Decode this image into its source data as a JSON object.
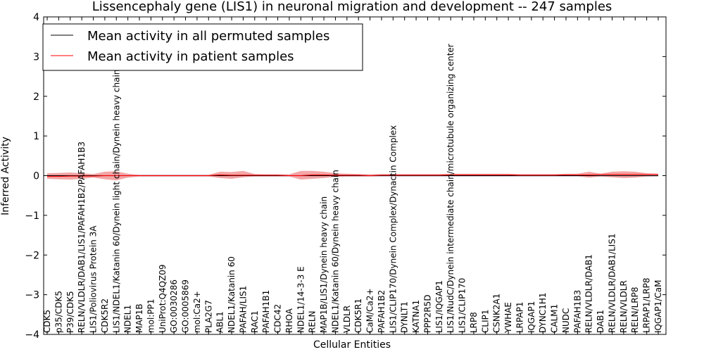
{
  "chart_data": {
    "type": "line",
    "title": "Lissencephaly gene (LIS1) in neuronal migration and development -- 247 samples",
    "xlabel": "Cellular Entities",
    "ylabel": "Inferred Activity",
    "ylim": [
      -4,
      4
    ],
    "yticks": [
      -4,
      -3,
      -2,
      -1,
      0,
      1,
      2,
      3,
      4
    ],
    "ytick_labels": [
      "−4",
      "−3",
      "−2",
      "−1",
      "0",
      "1",
      "2",
      "3",
      "4"
    ],
    "legend_position": "top-left",
    "categories": [
      "CDK5",
      "p35/CDK5",
      "P39/CDK5",
      "RELN/VLDLR/DAB1/LIS1/PAFAH1B2/PAFAH1B3",
      "LIS1/Poliovirus Protein 3A",
      "CDK5R2",
      "LIS1/NDEL1/Katanin 60/Dynein light chain/Dynein heavy chain",
      "NDEL1",
      "MAP1B",
      "mol:PP1",
      "UniProt:Q4QZ09",
      "GO:0030286",
      "GO:0005869",
      "mol:Ca2+",
      "PLA2G7",
      "ABL1",
      "NDEL1/Katanin 60",
      "PAFAH/LIS1",
      "RAC1",
      "PAFAH1B1",
      "CDC42",
      "RHOA",
      "NDEL1/14-3-3 E",
      "RELN",
      "MAP1B/LIS1/Dynein heavy chain",
      "NDEL1/Katanin 60/Dynein heavy chain",
      "VLDLR",
      "CDK5R1",
      "CaM/Ca2+",
      "PAFAH1B2",
      "LIS1/CLIP170/Dynein Complex/Dynactin Complex",
      "DYNLT1",
      "KATNA1",
      "PPP2R5D",
      "LIS1/IQGAP1",
      "LIS1/NudC/Dynein intermediate chain/microtubule organizing center",
      "LIS1/CLIP170",
      "LRP8",
      "CLIP1",
      "CSNK2A1",
      "YWHAE",
      "LRPAP1",
      "IQGAP1",
      "DYNC1H1",
      "CALM1",
      "NUDC",
      "PAFAH1B3",
      "RELN/VLDLR/DAB1",
      "DAB1",
      "RELN/VLDLR/DAB1/LIS1",
      "RELN/VLDLR",
      "RELN/LRP8",
      "LRPAP1/LRP8",
      "IQGAP1/CaM"
    ],
    "series": [
      {
        "name": "Mean activity in all permuted samples",
        "color": "#000000",
        "values": [
          0,
          0,
          0,
          0,
          0,
          0,
          0,
          0,
          0,
          0,
          0,
          0,
          0,
          0,
          0,
          0,
          0,
          0,
          0,
          0,
          0,
          0,
          0,
          0,
          0,
          0,
          0,
          0,
          0,
          0,
          0,
          0,
          0,
          0,
          0,
          0,
          0,
          0,
          0,
          0,
          0,
          0,
          0,
          0,
          0,
          0,
          0,
          0,
          0,
          0,
          0,
          0,
          0,
          0
        ],
        "band_lower": [
          -0.03,
          -0.03,
          -0.03,
          -0.03,
          -0.03,
          -0.03,
          -0.03,
          -0.03,
          -0.03,
          -0.03,
          -0.03,
          -0.03,
          -0.03,
          -0.03,
          -0.03,
          -0.03,
          -0.03,
          -0.03,
          -0.03,
          -0.03,
          -0.03,
          -0.03,
          -0.03,
          -0.03,
          -0.03,
          -0.03,
          -0.03,
          -0.03,
          -0.03,
          -0.03,
          -0.03,
          -0.03,
          -0.03,
          -0.03,
          -0.03,
          -0.03,
          -0.03,
          -0.03,
          -0.03,
          -0.03,
          -0.03,
          -0.03,
          -0.03,
          -0.03,
          -0.03,
          -0.03,
          -0.03,
          -0.03,
          -0.03,
          -0.03,
          -0.03,
          -0.03,
          -0.03,
          -0.03
        ],
        "band_upper": [
          0.03,
          0.03,
          0.03,
          0.03,
          0.03,
          0.03,
          0.03,
          0.03,
          0.03,
          0.03,
          0.03,
          0.03,
          0.03,
          0.03,
          0.03,
          0.03,
          0.03,
          0.03,
          0.03,
          0.03,
          0.03,
          0.03,
          0.03,
          0.03,
          0.03,
          0.03,
          0.03,
          0.03,
          0.03,
          0.03,
          0.03,
          0.03,
          0.03,
          0.03,
          0.03,
          0.03,
          0.03,
          0.03,
          0.03,
          0.03,
          0.03,
          0.03,
          0.03,
          0.03,
          0.03,
          0.03,
          0.03,
          0.03,
          0.03,
          0.03,
          0.03,
          0.03,
          0.03,
          0.03
        ],
        "band_color": "#b0b0c8"
      },
      {
        "name": "Mean activity in patient samples",
        "color": "#ff0000",
        "values": [
          -0.02,
          -0.02,
          -0.01,
          -0.01,
          -0.01,
          0,
          0,
          0,
          0,
          0,
          0,
          0,
          0,
          0,
          0,
          0.02,
          0.01,
          0.01,
          0.01,
          0.01,
          0.01,
          0,
          0,
          0.02,
          0.02,
          0.01,
          0.01,
          0.01,
          0,
          0.01,
          0.01,
          0.01,
          0.01,
          0.01,
          0.01,
          0.02,
          0.02,
          0.02,
          0.02,
          0.02,
          0.02,
          0.01,
          0.01,
          0.01,
          0.01,
          0.02,
          0.02,
          0.02,
          0.03,
          0.03,
          0.03,
          0.03,
          0.03,
          0.03
        ],
        "band_lower": [
          -0.08,
          -0.09,
          -0.1,
          -0.08,
          -0.05,
          -0.09,
          -0.12,
          -0.05,
          -0.02,
          -0.02,
          -0.02,
          -0.02,
          -0.02,
          -0.02,
          -0.02,
          -0.06,
          -0.08,
          -0.04,
          -0.02,
          -0.02,
          -0.02,
          -0.02,
          -0.1,
          -0.08,
          -0.06,
          -0.03,
          -0.02,
          -0.02,
          -0.02,
          -0.01,
          -0.01,
          -0.01,
          -0.01,
          -0.01,
          -0.01,
          -0.01,
          -0.01,
          -0.01,
          -0.01,
          -0.01,
          -0.01,
          -0.01,
          -0.01,
          -0.01,
          -0.01,
          -0.01,
          -0.01,
          -0.05,
          -0.02,
          -0.04,
          -0.06,
          -0.05,
          -0.02,
          -0.01
        ],
        "band_upper": [
          0.06,
          0.07,
          0.08,
          0.06,
          0.04,
          0.1,
          0.11,
          0.05,
          0.02,
          0.02,
          0.02,
          0.02,
          0.02,
          0.02,
          0.02,
          0.1,
          0.09,
          0.12,
          0.04,
          0.03,
          0.03,
          0.03,
          0.12,
          0.12,
          0.1,
          0.06,
          0.05,
          0.04,
          0.03,
          0.04,
          0.04,
          0.04,
          0.04,
          0.04,
          0.04,
          0.05,
          0.05,
          0.05,
          0.05,
          0.05,
          0.05,
          0.04,
          0.04,
          0.04,
          0.04,
          0.05,
          0.05,
          0.1,
          0.05,
          0.1,
          0.11,
          0.1,
          0.06,
          0.05
        ],
        "band_color": "#f08080"
      }
    ]
  }
}
